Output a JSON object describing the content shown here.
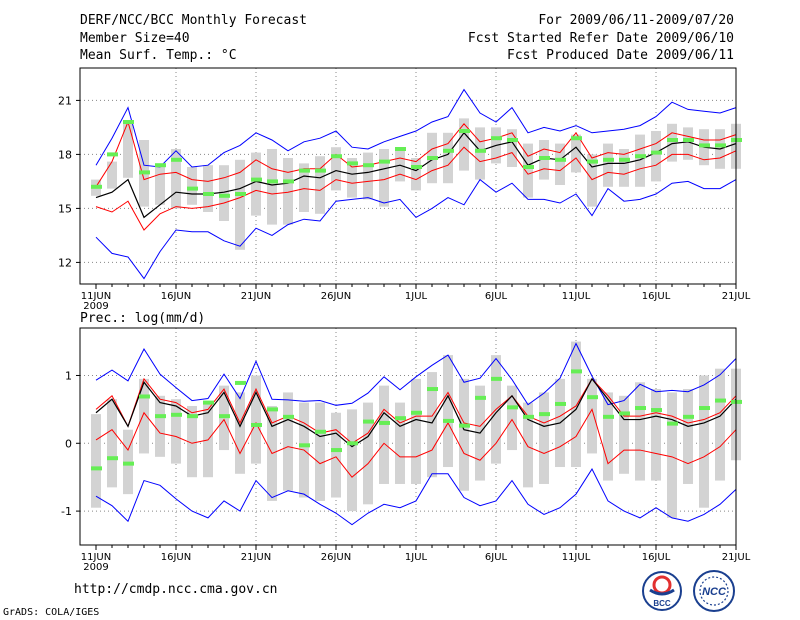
{
  "header": {
    "title": "DERF/NCC/BCC Monthly Forecast",
    "member_size": "Member Size=40",
    "variable1": "Mean Surf. Temp.: °C",
    "period": "For 2009/06/11-2009/07/20",
    "started": "Fcst Started Refer Date 2009/06/10",
    "produced": "Fcst Produced Date 2009/06/11"
  },
  "footer": {
    "url": "http://cmdp.ncc.cma.gov.cn",
    "credit": "GrADS: COLA/IGES",
    "logo_bcc": "BCC",
    "logo_ncc": "NCC"
  },
  "colors": {
    "box": "#d3d3d3",
    "median": "#000000",
    "inner": "#ff0000",
    "outer": "#0000ff",
    "mean": "#66ee55",
    "grid": "#888888"
  },
  "chart_data": [
    {
      "type": "line",
      "title": "Mean Surf. Temp.: °C",
      "xlabel": "",
      "ylabel": "",
      "ylim": [
        10.8,
        22.8
      ],
      "yticks": [
        "12",
        "15",
        "18",
        "21"
      ],
      "ytick_values": [
        12,
        15,
        18,
        21
      ],
      "xticks": [
        "11JUN",
        "16JUN",
        "21JUN",
        "26JUN",
        "1JUL",
        "6JUL",
        "11JUL",
        "16JUL",
        "21JUL"
      ],
      "xtick_days": [
        0,
        5,
        10,
        15,
        20,
        25,
        30,
        35,
        40
      ],
      "year_label": "2009",
      "series": [
        {
          "name": "ensemble max",
          "values": [
            13.4,
            12.5,
            12.3,
            11.1,
            12.6,
            13.8,
            13.7,
            13.7,
            13.2,
            12.9,
            13.9,
            13.5,
            14.1,
            14.4,
            14.3,
            15.4,
            15.5,
            15.6,
            15.3,
            15.5,
            14.5,
            15.0,
            15.6,
            15.2,
            16.6,
            15.9,
            16.4,
            15.5,
            15.5,
            15.3,
            15.8,
            14.6,
            16.1,
            15.4,
            15.5,
            15.8,
            16.4,
            16.5,
            16.1,
            16.1,
            16.6
          ]
        },
        {
          "name": "upper 90%",
          "values": [
            17.4,
            18.9,
            20.6,
            17.4,
            17.3,
            18.2,
            17.3,
            17.4,
            18.1,
            18.5,
            19.2,
            18.8,
            18.2,
            18.7,
            18.9,
            19.3,
            18.4,
            18.3,
            18.7,
            19.0,
            19.3,
            19.8,
            20.1,
            21.6,
            20.3,
            19.8,
            20.6,
            19.2,
            19.5,
            19.3,
            19.6,
            19.2,
            19.3,
            19.4,
            19.6,
            20.1,
            20.9,
            20.5,
            20.4,
            20.3,
            20.6
          ]
        },
        {
          "name": "upper 75%",
          "values": [
            16.2,
            17.6,
            19.8,
            16.6,
            16.9,
            17.0,
            16.6,
            16.5,
            16.7,
            17.0,
            17.7,
            17.2,
            17.0,
            17.2,
            17.2,
            18.0,
            17.3,
            17.4,
            17.6,
            17.8,
            17.6,
            18.3,
            18.6,
            19.7,
            18.7,
            18.9,
            19.2,
            17.9,
            18.3,
            18.1,
            19.2,
            17.8,
            18.1,
            18.0,
            18.3,
            18.6,
            19.2,
            19.0,
            18.8,
            18.8,
            19.1
          ]
        },
        {
          "name": "median",
          "values": [
            15.6,
            15.9,
            16.6,
            14.5,
            15.2,
            15.9,
            15.8,
            15.8,
            15.9,
            16.1,
            16.5,
            16.3,
            16.4,
            16.8,
            16.7,
            17.1,
            16.9,
            17.0,
            17.2,
            17.4,
            17.1,
            17.7,
            18.0,
            19.2,
            18.2,
            18.5,
            18.7,
            17.4,
            17.8,
            17.7,
            18.4,
            17.3,
            17.5,
            17.5,
            17.7,
            18.1,
            18.6,
            18.7,
            18.4,
            18.3,
            18.6
          ]
        },
        {
          "name": "lower 25%",
          "values": [
            15.1,
            14.8,
            15.4,
            13.8,
            14.7,
            15.1,
            15.0,
            15.1,
            15.3,
            15.6,
            16.0,
            15.8,
            15.9,
            16.1,
            16.0,
            16.6,
            16.4,
            16.5,
            16.6,
            16.9,
            16.6,
            17.1,
            17.4,
            18.4,
            17.6,
            17.8,
            18.1,
            16.9,
            17.2,
            17.1,
            17.8,
            16.6,
            17.0,
            16.9,
            17.2,
            17.4,
            18.0,
            18.0,
            17.7,
            17.8,
            18.2
          ]
        },
        {
          "name": "ensemble mean",
          "values": [
            16.2,
            18.0,
            19.8,
            17.0,
            17.4,
            17.7,
            16.1,
            15.8,
            15.7,
            15.8,
            16.6,
            16.5,
            16.5,
            17.1,
            17.1,
            17.9,
            17.5,
            17.4,
            17.6,
            18.3,
            17.3,
            17.8,
            18.2,
            19.3,
            18.2,
            18.9,
            18.8,
            17.3,
            17.8,
            17.7,
            18.9,
            17.6,
            17.7,
            17.7,
            17.9,
            18.1,
            18.8,
            18.8,
            18.5,
            18.5,
            18.8
          ]
        },
        {
          "name": "box high",
          "values": [
            16.6,
            17.6,
            19.8,
            18.8,
            17.4,
            18.3,
            17.3,
            17.4,
            17.4,
            17.7,
            18.1,
            18.3,
            17.8,
            17.5,
            17.9,
            18.4,
            17.8,
            18.1,
            18.3,
            18.4,
            17.8,
            19.2,
            19.2,
            20.0,
            19.5,
            19.5,
            19.4,
            18.6,
            18.8,
            18.6,
            19.1,
            18.0,
            18.6,
            18.3,
            19.1,
            19.3,
            19.7,
            19.5,
            19.4,
            19.4,
            19.7
          ]
        },
        {
          "name": "box low",
          "values": [
            15.7,
            16.1,
            16.7,
            15.1,
            15.2,
            15.0,
            15.2,
            14.8,
            14.3,
            12.7,
            14.6,
            14.1,
            14.1,
            14.8,
            14.7,
            16.0,
            15.6,
            15.5,
            15.1,
            16.5,
            16.0,
            16.4,
            16.4,
            17.1,
            16.6,
            17.5,
            17.3,
            15.6,
            16.6,
            16.3,
            17.0,
            15.1,
            16.2,
            16.2,
            16.2,
            16.5,
            17.6,
            17.7,
            17.4,
            17.2,
            17.2
          ]
        }
      ]
    },
    {
      "type": "line",
      "title": "Prec.: log(mm/d)",
      "xlabel": "",
      "ylabel": "",
      "ylim": [
        -1.5,
        1.7
      ],
      "yticks": [
        "-1",
        "0",
        "1"
      ],
      "ytick_values": [
        -1,
        0,
        1
      ],
      "xticks": [
        "11JUN",
        "16JUN",
        "21JUN",
        "26JUN",
        "1JUL",
        "6JUL",
        "11JUL",
        "16JUL",
        "21JUL"
      ],
      "xtick_days": [
        0,
        5,
        10,
        15,
        20,
        25,
        30,
        35,
        40
      ],
      "year_label": "2009",
      "series": [
        {
          "name": "ensemble max",
          "values": [
            0.93,
            1.08,
            0.92,
            1.39,
            1.02,
            0.82,
            0.63,
            0.66,
            1.02,
            0.66,
            1.21,
            0.65,
            0.64,
            0.62,
            0.63,
            0.56,
            0.59,
            0.74,
            0.98,
            0.79,
            0.98,
            1.15,
            1.3,
            0.9,
            0.96,
            1.25,
            0.94,
            0.57,
            0.74,
            0.96,
            1.47,
            0.99,
            0.57,
            0.63,
            0.87,
            0.76,
            0.78,
            0.76,
            0.86,
            1.01,
            1.25
          ]
        },
        {
          "name": "upper 75%",
          "values": [
            0.5,
            0.7,
            0.25,
            0.95,
            0.65,
            0.6,
            0.45,
            0.5,
            0.8,
            0.3,
            0.8,
            0.3,
            0.4,
            0.3,
            0.15,
            0.2,
            0.0,
            0.15,
            0.5,
            0.3,
            0.4,
            0.4,
            0.75,
            0.3,
            0.25,
            0.5,
            0.7,
            0.4,
            0.3,
            0.4,
            0.55,
            0.95,
            0.7,
            0.4,
            0.4,
            0.45,
            0.4,
            0.3,
            0.35,
            0.45,
            0.7
          ]
        },
        {
          "name": "median",
          "values": [
            0.45,
            0.65,
            0.25,
            0.9,
            0.6,
            0.55,
            0.4,
            0.45,
            0.75,
            0.25,
            0.75,
            0.25,
            0.35,
            0.25,
            0.1,
            0.15,
            -0.05,
            0.1,
            0.45,
            0.25,
            0.35,
            0.3,
            0.7,
            0.2,
            0.15,
            0.45,
            0.7,
            0.35,
            0.25,
            0.3,
            0.5,
            0.95,
            0.65,
            0.35,
            0.35,
            0.4,
            0.35,
            0.25,
            0.3,
            0.4,
            0.65
          ]
        },
        {
          "name": "lower 25%",
          "values": [
            0.05,
            0.2,
            -0.1,
            0.45,
            0.15,
            0.1,
            0.0,
            0.05,
            0.35,
            -0.15,
            0.3,
            -0.15,
            -0.05,
            -0.1,
            -0.3,
            -0.2,
            -0.5,
            -0.3,
            0.0,
            -0.2,
            -0.2,
            -0.1,
            0.3,
            -0.15,
            -0.25,
            0.0,
            0.35,
            -0.05,
            -0.15,
            -0.05,
            0.1,
            0.5,
            -0.3,
            -0.1,
            -0.1,
            -0.15,
            -0.2,
            -0.3,
            -0.2,
            -0.05,
            0.2
          ]
        },
        {
          "name": "ensemble min",
          "values": [
            -0.78,
            -0.92,
            -1.15,
            -0.55,
            -0.62,
            -0.82,
            -1.0,
            -1.1,
            -0.85,
            -1.0,
            -0.55,
            -0.8,
            -0.7,
            -0.75,
            -0.9,
            -1.03,
            -1.2,
            -1.03,
            -0.9,
            -0.95,
            -0.85,
            -0.45,
            -0.45,
            -0.8,
            -0.92,
            -0.85,
            -0.55,
            -0.9,
            -1.05,
            -0.95,
            -0.75,
            -0.38,
            -0.85,
            -1.0,
            -1.1,
            -0.95,
            -1.1,
            -1.15,
            -1.05,
            -0.9,
            -0.68
          ]
        },
        {
          "name": "ensemble mean",
          "values": [
            -0.37,
            -0.22,
            -0.3,
            0.69,
            0.4,
            0.42,
            0.4,
            0.6,
            0.4,
            0.89,
            0.27,
            0.5,
            0.39,
            -0.03,
            0.17,
            -0.1,
            0.0,
            0.32,
            0.3,
            0.37,
            0.45,
            0.8,
            0.33,
            0.26,
            0.67,
            0.95,
            0.53,
            0.39,
            0.43,
            0.58,
            1.06,
            0.68,
            0.39,
            0.44,
            0.52,
            0.49,
            0.29,
            0.39,
            0.52,
            0.63,
            0.61
          ]
        },
        {
          "name": "box high",
          "values": [
            0.43,
            0.65,
            0.2,
            0.95,
            0.7,
            0.65,
            0.55,
            0.6,
            0.85,
            0.75,
            1.0,
            0.55,
            0.75,
            0.6,
            0.6,
            0.45,
            0.5,
            0.6,
            0.85,
            0.6,
            0.95,
            1.05,
            1.3,
            0.95,
            0.85,
            1.3,
            0.85,
            0.6,
            0.75,
            0.95,
            1.5,
            0.95,
            0.75,
            0.7,
            0.9,
            0.8,
            0.75,
            0.8,
            1.0,
            1.1,
            1.1
          ]
        },
        {
          "name": "box low",
          "values": [
            -0.95,
            -0.65,
            -0.75,
            -0.15,
            -0.2,
            -0.3,
            -0.5,
            -0.5,
            -0.1,
            -0.45,
            -0.3,
            -0.85,
            -0.7,
            -0.8,
            -0.85,
            -0.8,
            -1.0,
            -0.9,
            -0.6,
            -0.6,
            -0.6,
            -0.5,
            -0.35,
            -0.7,
            -0.55,
            -0.3,
            -0.1,
            -0.65,
            -0.6,
            -0.35,
            -0.35,
            -0.15,
            -0.55,
            -0.45,
            -0.55,
            -0.55,
            -1.1,
            -0.6,
            -0.95,
            -0.55,
            -0.25
          ]
        }
      ]
    }
  ]
}
